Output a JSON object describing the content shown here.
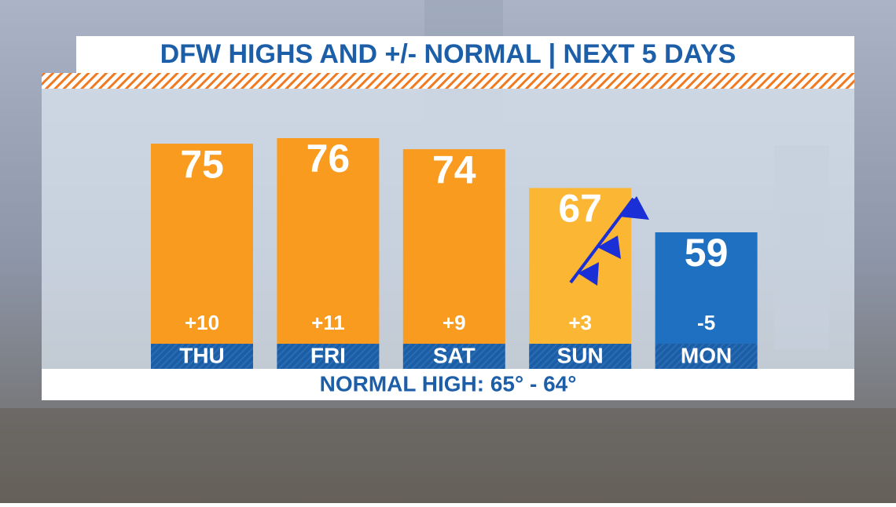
{
  "chart_data": {
    "type": "bar",
    "title": "DFW HIGHS AND +/- NORMAL | NEXT 5 DAYS",
    "categories": [
      "THU",
      "FRI",
      "SAT",
      "SUN",
      "MON"
    ],
    "values": [
      75,
      76,
      74,
      67,
      59
    ],
    "colors": [
      "#f89b1e",
      "#f89b1e",
      "#f89b1e",
      "#fbb634",
      "#1f70c1"
    ],
    "departures": {
      "values": [
        10,
        11,
        9,
        3,
        -5
      ],
      "value_labels": [
        "+10",
        "+11",
        "+9",
        "+3",
        "-5"
      ]
    },
    "footer": "NORMAL HIGH: 65° - 64°"
  }
}
